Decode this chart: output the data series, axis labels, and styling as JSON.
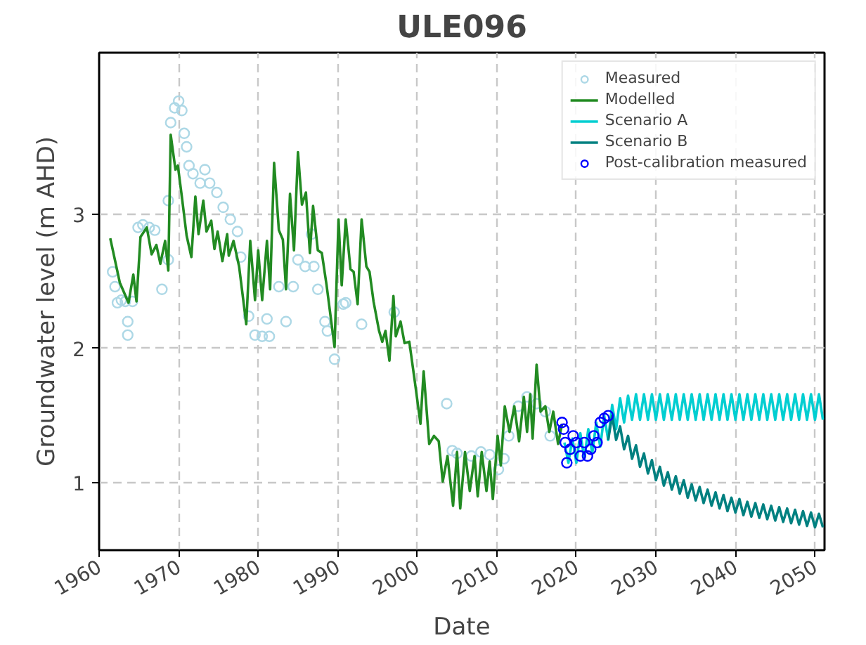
{
  "chart_data": {
    "type": "line",
    "title": "ULE096",
    "xlabel": "Date",
    "ylabel": "Groundwater level (m AHD)",
    "xlim": [
      1960,
      2051.2
    ],
    "ylim": [
      0.5,
      4.2
    ],
    "xticks": [
      1960,
      1970,
      1980,
      1990,
      2000,
      2010,
      2020,
      2030,
      2040,
      2050
    ],
    "yticks": [
      1,
      2,
      3
    ],
    "grid": true,
    "legend": "top right",
    "series": [
      {
        "name": "Measured",
        "type": "scatter",
        "marker": "circle",
        "color": "#add8e6",
        "x": [
          1961.7,
          1962,
          1962.3,
          1962.8,
          1963.3,
          1963.6,
          1963.6,
          1964.2,
          1964.9,
          1965.5,
          1966.3,
          1967,
          1967.9,
          1968.7,
          1968.7,
          1969,
          1969.5,
          1970,
          1970.4,
          1970.7,
          1971,
          1971.3,
          1971.8,
          1972.7,
          1973.3,
          1973.9,
          1974.8,
          1975.6,
          1976.5,
          1977.4,
          1977.8,
          1978.8,
          1979.6,
          1980.5,
          1981.1,
          1981.4,
          1982.6,
          1983.5,
          1984.4,
          1985,
          1985.9,
          1986.7,
          1987,
          1987.5,
          1988.4,
          1988.7,
          1989.6,
          1990.7,
          1991,
          1993,
          1997.1,
          2003.7,
          2004.4,
          2005,
          2006.8,
          2008,
          2009.1,
          2010.2,
          2010.9,
          2011.5,
          2012.7,
          2013.8,
          2015,
          2016.1,
          2016.7
        ],
        "values": [
          2.57,
          2.46,
          2.34,
          2.36,
          2.35,
          2.2,
          2.1,
          2.35,
          2.9,
          2.92,
          2.9,
          2.88,
          2.44,
          2.66,
          3.1,
          3.68,
          3.79,
          3.84,
          3.77,
          3.6,
          3.5,
          3.36,
          3.3,
          3.23,
          3.33,
          3.23,
          3.16,
          3.05,
          2.96,
          2.87,
          2.68,
          2.24,
          2.1,
          2.09,
          2.22,
          2.09,
          2.46,
          2.2,
          2.46,
          2.66,
          2.61,
          2.85,
          2.61,
          2.44,
          2.2,
          2.13,
          1.92,
          2.33,
          2.34,
          2.18,
          2.27,
          1.59,
          1.24,
          1.22,
          1.2,
          1.23,
          1.21,
          1.1,
          1.18,
          1.35,
          1.57,
          1.64,
          1.59,
          1.53,
          1.35
        ]
      },
      {
        "name": "Modelled",
        "color": "#228b22",
        "x": [
          1961.4,
          1962.6,
          1963.7,
          1964.3,
          1964.7,
          1965.2,
          1966,
          1966.6,
          1967.2,
          1967.7,
          1968.3,
          1968.7,
          1969,
          1969.6,
          1969.9,
          1970.4,
          1971,
          1971.6,
          1972.1,
          1972.5,
          1973.1,
          1973.5,
          1974.1,
          1974.5,
          1974.9,
          1975.5,
          1976.1,
          1976.3,
          1976.9,
          1977.6,
          1978.5,
          1979,
          1979.6,
          1980,
          1980.5,
          1981.1,
          1981.5,
          1982,
          1982.6,
          1983.1,
          1983.5,
          1984,
          1984.5,
          1985,
          1985.5,
          1986,
          1986.5,
          1986.9,
          1987.5,
          1988,
          1988.6,
          1989.6,
          1990.1,
          1990.5,
          1991,
          1991.6,
          1992,
          1992.5,
          1993,
          1993.6,
          1994,
          1994.5,
          1995.2,
          1995.6,
          1996,
          1996.5,
          1997,
          1997.3,
          1997.9,
          1998.4,
          1999,
          1999.7,
          2000.4,
          2000.8,
          2001.5,
          2002.1,
          2002.7,
          2003.2,
          2003.8,
          2004.5,
          2005,
          2005.4,
          2006,
          2006.6,
          2007.2,
          2007.6,
          2008.1,
          2008.7,
          2009.1,
          2009.5,
          2010.1,
          2010.5,
          2011,
          2011.6,
          2012.2,
          2012.8,
          2013.4,
          2013.8,
          2014.2,
          2014.5,
          2015,
          2015.5,
          2016.1,
          2016.6,
          2017.1,
          2017.7,
          2018.2
        ],
        "values": [
          2.82,
          2.49,
          2.34,
          2.55,
          2.35,
          2.83,
          2.9,
          2.7,
          2.77,
          2.63,
          2.8,
          2.58,
          3.59,
          3.33,
          3.36,
          3.13,
          2.84,
          2.68,
          3.13,
          2.85,
          3.1,
          2.87,
          2.95,
          2.74,
          2.87,
          2.65,
          2.85,
          2.69,
          2.8,
          2.61,
          2.18,
          2.8,
          2.36,
          2.73,
          2.36,
          2.8,
          2.44,
          3.38,
          2.88,
          2.81,
          2.44,
          3.15,
          2.73,
          3.46,
          3.07,
          3.16,
          2.71,
          3.06,
          2.73,
          2.71,
          2.47,
          2.01,
          2.96,
          2.47,
          2.96,
          2.59,
          2.57,
          2.33,
          2.96,
          2.61,
          2.57,
          2.35,
          2.13,
          2.05,
          2.13,
          1.91,
          2.39,
          2.09,
          2.2,
          2.04,
          2.05,
          1.75,
          1.44,
          1.83,
          1.29,
          1.35,
          1.31,
          1.01,
          1.2,
          0.83,
          1.23,
          0.81,
          1.23,
          0.94,
          1.2,
          0.9,
          1.23,
          0.94,
          1.16,
          0.88,
          1.35,
          1.13,
          1.57,
          1.38,
          1.57,
          1.31,
          1.64,
          1.38,
          1.66,
          1.33,
          1.88,
          1.53,
          1.57,
          1.38,
          1.53,
          1.29,
          1.44
        ]
      },
      {
        "name": "Scenario A",
        "color": "#00ced1",
        "x": [
          2018.5,
          2019,
          2019.5,
          2020,
          2020.5,
          2021,
          2021.5,
          2022,
          2022.5,
          2023,
          2023.5,
          2024,
          2024.5,
          2025,
          2025.5,
          2026,
          2026.5,
          2027,
          2027.5,
          2028,
          2028.5,
          2029,
          2029.5,
          2030,
          2030.5,
          2031,
          2031.5,
          2032,
          2032.5,
          2033,
          2033.5,
          2034,
          2034.5,
          2035,
          2035.5,
          2036,
          2036.5,
          2037,
          2037.5,
          2038,
          2038.5,
          2039,
          2039.5,
          2040,
          2040.5,
          2041,
          2041.5,
          2042,
          2042.5,
          2043,
          2043.5,
          2044,
          2044.5,
          2045,
          2045.5,
          2046,
          2046.5,
          2047,
          2047.5,
          2048,
          2048.5,
          2049,
          2049.5,
          2050,
          2050.5,
          2051
        ],
        "values": [
          1.3,
          1.15,
          1.33,
          1.15,
          1.37,
          1.18,
          1.4,
          1.22,
          1.45,
          1.27,
          1.5,
          1.32,
          1.58,
          1.4,
          1.63,
          1.45,
          1.65,
          1.47,
          1.66,
          1.47,
          1.66,
          1.47,
          1.66,
          1.47,
          1.66,
          1.47,
          1.66,
          1.47,
          1.66,
          1.47,
          1.66,
          1.47,
          1.66,
          1.47,
          1.66,
          1.47,
          1.66,
          1.47,
          1.66,
          1.47,
          1.66,
          1.47,
          1.66,
          1.47,
          1.66,
          1.47,
          1.66,
          1.47,
          1.66,
          1.47,
          1.66,
          1.47,
          1.66,
          1.47,
          1.66,
          1.47,
          1.66,
          1.47,
          1.66,
          1.47,
          1.66,
          1.47,
          1.66,
          1.47,
          1.66,
          1.47
        ]
      },
      {
        "name": "Scenario B",
        "color": "#008080",
        "x": [
          2024,
          2024.5,
          2025,
          2025.5,
          2026,
          2026.5,
          2027,
          2027.5,
          2028,
          2028.5,
          2029,
          2029.5,
          2030,
          2030.5,
          2031,
          2031.5,
          2032,
          2032.5,
          2033,
          2033.5,
          2034,
          2034.5,
          2035,
          2035.5,
          2036,
          2036.5,
          2037,
          2037.5,
          2038,
          2038.5,
          2039,
          2039.5,
          2040,
          2040.5,
          2041,
          2041.5,
          2042,
          2042.5,
          2043,
          2043.5,
          2044,
          2044.5,
          2045,
          2045.5,
          2046,
          2046.5,
          2047,
          2047.5,
          2048,
          2048.5,
          2049,
          2049.5,
          2050,
          2050.5,
          2051
        ],
        "values": [
          1.32,
          1.5,
          1.32,
          1.42,
          1.25,
          1.35,
          1.18,
          1.28,
          1.12,
          1.22,
          1.07,
          1.17,
          1.02,
          1.12,
          0.98,
          1.08,
          0.95,
          1.05,
          0.92,
          1.02,
          0.89,
          0.99,
          0.87,
          0.97,
          0.85,
          0.95,
          0.83,
          0.93,
          0.81,
          0.91,
          0.79,
          0.89,
          0.78,
          0.88,
          0.76,
          0.86,
          0.75,
          0.85,
          0.74,
          0.84,
          0.73,
          0.83,
          0.72,
          0.82,
          0.71,
          0.81,
          0.7,
          0.8,
          0.69,
          0.79,
          0.68,
          0.78,
          0.67,
          0.77,
          0.67
        ]
      },
      {
        "name": "Post-calibration measured",
        "type": "scatter",
        "marker": "circle",
        "color": "#0000ff",
        "x": [
          2018.2,
          2018.4,
          2018.6,
          2018.8,
          2019.2,
          2019.6,
          2020,
          2020.5,
          2021,
          2021.4,
          2021.8,
          2022.2,
          2022.6,
          2023,
          2023.5,
          2024
        ],
        "values": [
          1.45,
          1.4,
          1.3,
          1.15,
          1.25,
          1.35,
          1.3,
          1.2,
          1.3,
          1.2,
          1.25,
          1.35,
          1.3,
          1.45,
          1.48,
          1.5
        ]
      }
    ]
  }
}
